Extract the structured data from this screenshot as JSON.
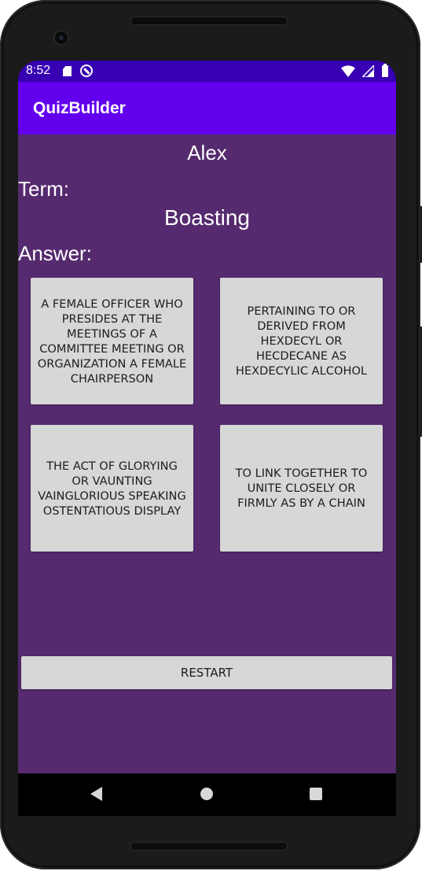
{
  "status_bar": {
    "time": "8:52",
    "icons": [
      "sd-card-icon",
      "sync-icon",
      "wifi-icon",
      "cellular-icon",
      "battery-icon"
    ],
    "color": "#3700b3"
  },
  "app_bar": {
    "title": "QuizBuilder",
    "color": "#6200ee"
  },
  "quiz": {
    "player_name": "Alex",
    "term_label": "Term:",
    "term_value": "Boasting",
    "answer_label": "Answer:",
    "answers": [
      "A FEMALE OFFICER WHO PRESIDES AT THE MEETINGS OF A COMMITTEE MEETING OR ORGANIZATION A FEMALE CHAIRPERSON",
      "PERTAINING TO OR DERIVED FROM HEXDECYL OR HECDECANE AS HEXDECYLIC ALCOHOL",
      "THE ACT OF GLORYING OR VAUNTING VAINGLORIOUS SPEAKING OSTENTATIOUS DISPLAY",
      "TO LINK TOGETHER TO UNITE CLOSELY OR FIRMLY AS BY A CHAIN"
    ],
    "restart_label": "RESTART",
    "background_color": "#552a6e",
    "button_color": "#d6d7d7"
  },
  "nav_bar": {
    "buttons": [
      "back-icon",
      "home-icon",
      "recents-icon"
    ]
  }
}
